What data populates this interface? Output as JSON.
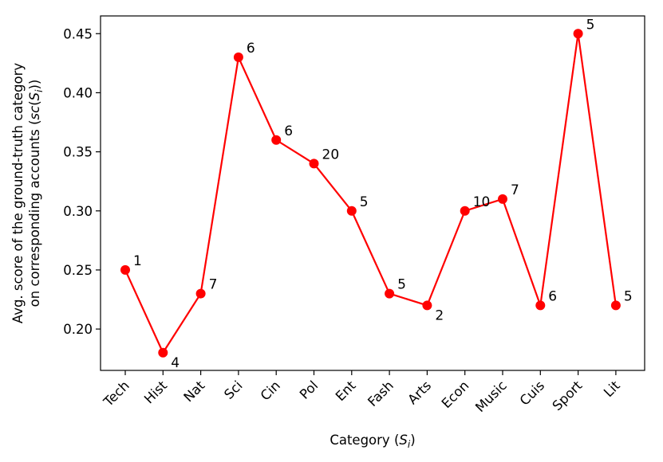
{
  "chart_data": {
    "type": "line",
    "categories": [
      "Tech",
      "Hist",
      "Nat",
      "Sci",
      "Cin",
      "Pol",
      "Ent",
      "Fash",
      "Arts",
      "Econ",
      "Music",
      "Cuis",
      "Sport",
      "Lit"
    ],
    "series": [
      {
        "values": [
          0.25,
          0.18,
          0.23,
          0.43,
          0.36,
          0.34,
          0.3,
          0.23,
          0.22,
          0.3,
          0.31,
          0.22,
          0.45,
          0.22
        ],
        "point_labels": [
          "1",
          "4",
          "7",
          "6",
          "6",
          "20",
          "5",
          "5",
          "2",
          "10",
          "7",
          "6",
          "5",
          "5"
        ],
        "color": "#ff0000"
      }
    ],
    "xlabel_main": "Category (",
    "xlabel_var": "S",
    "xlabel_sub": "i",
    "xlabel_end": ")",
    "ylabel_line1": "Avg. score of the ground-truth category",
    "ylabel_line2_main": "on corresponding accounts (",
    "ylabel_line2_var": "sc",
    "ylabel_line2_paren": "(",
    "ylabel_line2_S": "S",
    "ylabel_line2_sub": "i",
    "ylabel_line2_end": "))",
    "ylim": [
      0.165,
      0.465
    ],
    "yticks": [
      0.2,
      0.25,
      0.3,
      0.35,
      0.4,
      0.45
    ],
    "ytick_labels": [
      "0.20",
      "0.25",
      "0.30",
      "0.35",
      "0.40",
      "0.45"
    ],
    "grid": false,
    "legend": "none"
  }
}
